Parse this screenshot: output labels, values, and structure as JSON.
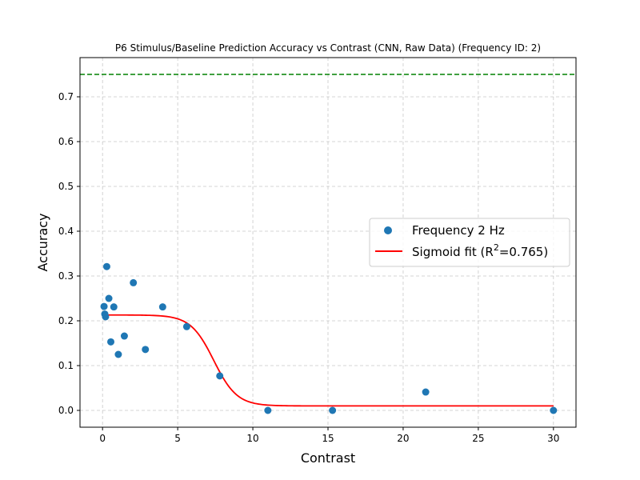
{
  "chart_data": {
    "type": "scatter",
    "title": "P6 Stimulus/Baseline Prediction Accuracy vs Contrast (CNN, Raw Data) (Frequency ID: 2)",
    "xlabel": "Contrast",
    "ylabel": "Accuracy",
    "xlim": [
      -1.5,
      31.5
    ],
    "ylim": [
      -0.0375,
      0.7875
    ],
    "xticks": [
      0,
      5,
      10,
      15,
      20,
      25,
      30
    ],
    "yticks": [
      0.0,
      0.1,
      0.2,
      0.3,
      0.4,
      0.5,
      0.6,
      0.7
    ],
    "xtick_labels": [
      "0",
      "5",
      "10",
      "15",
      "20",
      "25",
      "30"
    ],
    "ytick_labels": [
      "0.0",
      "0.1",
      "0.2",
      "0.3",
      "0.4",
      "0.5",
      "0.6",
      "0.7"
    ],
    "grid": true,
    "legend_position": "center-right",
    "series": [
      {
        "name": "Frequency 2 Hz",
        "kind": "scatter",
        "color": "#1f77b4",
        "points": [
          {
            "x": 0.1,
            "y": 0.232
          },
          {
            "x": 0.15,
            "y": 0.215
          },
          {
            "x": 0.2,
            "y": 0.209
          },
          {
            "x": 0.28,
            "y": 0.321
          },
          {
            "x": 0.42,
            "y": 0.25
          },
          {
            "x": 0.55,
            "y": 0.153
          },
          {
            "x": 0.75,
            "y": 0.231
          },
          {
            "x": 1.05,
            "y": 0.125
          },
          {
            "x": 1.45,
            "y": 0.166
          },
          {
            "x": 2.05,
            "y": 0.285
          },
          {
            "x": 2.85,
            "y": 0.136
          },
          {
            "x": 4.0,
            "y": 0.231
          },
          {
            "x": 5.6,
            "y": 0.187
          },
          {
            "x": 7.8,
            "y": 0.077
          },
          {
            "x": 11.0,
            "y": 0.0
          },
          {
            "x": 15.3,
            "y": 0.0
          },
          {
            "x": 21.5,
            "y": 0.041
          },
          {
            "x": 30.0,
            "y": 0.0
          }
        ]
      },
      {
        "name": "Sigmoid fit (R²=0.765)",
        "kind": "line",
        "color": "#ff0000",
        "fit": {
          "lower": 0.01,
          "upper": 0.213,
          "x0": 7.4,
          "k": 1.3,
          "x_start": 0.0,
          "x_end": 30.0
        }
      }
    ],
    "reference_lines": [
      {
        "orientation": "horizontal",
        "y": 0.75,
        "color": "#008000",
        "style": "dashed"
      }
    ],
    "legend": {
      "entries": [
        {
          "label_main": "Frequency 2 Hz",
          "label_sup": ""
        },
        {
          "label_main": "Sigmoid fit (R",
          "label_sup": "2",
          "label_tail": "=0.765)"
        }
      ]
    }
  }
}
